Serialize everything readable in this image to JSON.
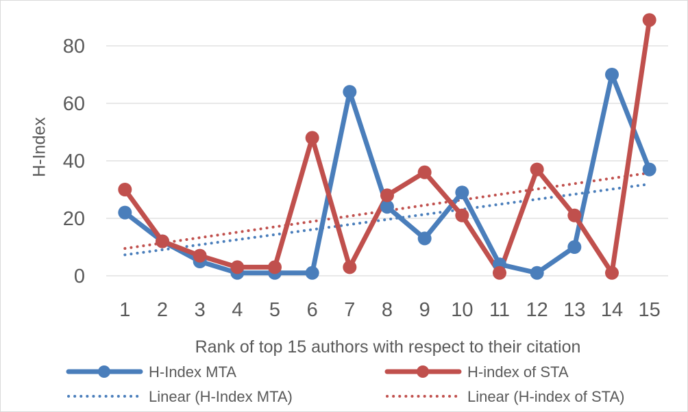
{
  "chart_data": {
    "type": "line",
    "title": "",
    "xlabel": "Rank of top 15 authors with respect to their citation",
    "ylabel": "H-Index",
    "categories": [
      "1",
      "2",
      "3",
      "4",
      "5",
      "6",
      "7",
      "8",
      "9",
      "10",
      "11",
      "12",
      "13",
      "14",
      "15"
    ],
    "ylim": [
      0,
      90
    ],
    "yticks": [
      0,
      20,
      40,
      60,
      80
    ],
    "grid": true,
    "legend_position": "bottom",
    "series": [
      {
        "name": "H-Index MTA",
        "color": "#4a7ebb",
        "values": [
          22,
          12,
          5,
          1,
          1,
          1,
          64,
          24,
          13,
          29,
          4,
          1,
          10,
          70,
          37
        ]
      },
      {
        "name": "H-index of STA",
        "color": "#c0504d",
        "values": [
          30,
          12,
          7,
          3,
          3,
          48,
          3,
          28,
          36,
          21,
          1,
          37,
          21,
          1,
          89
        ]
      }
    ],
    "trendlines": [
      {
        "name": "Linear (H-Index MTA)",
        "color": "#4a7ebb",
        "type": "linear",
        "of": "H-Index MTA"
      },
      {
        "name": "Linear (H-index of STA)",
        "color": "#c0504d",
        "type": "linear",
        "of": "H-index of STA"
      }
    ]
  }
}
